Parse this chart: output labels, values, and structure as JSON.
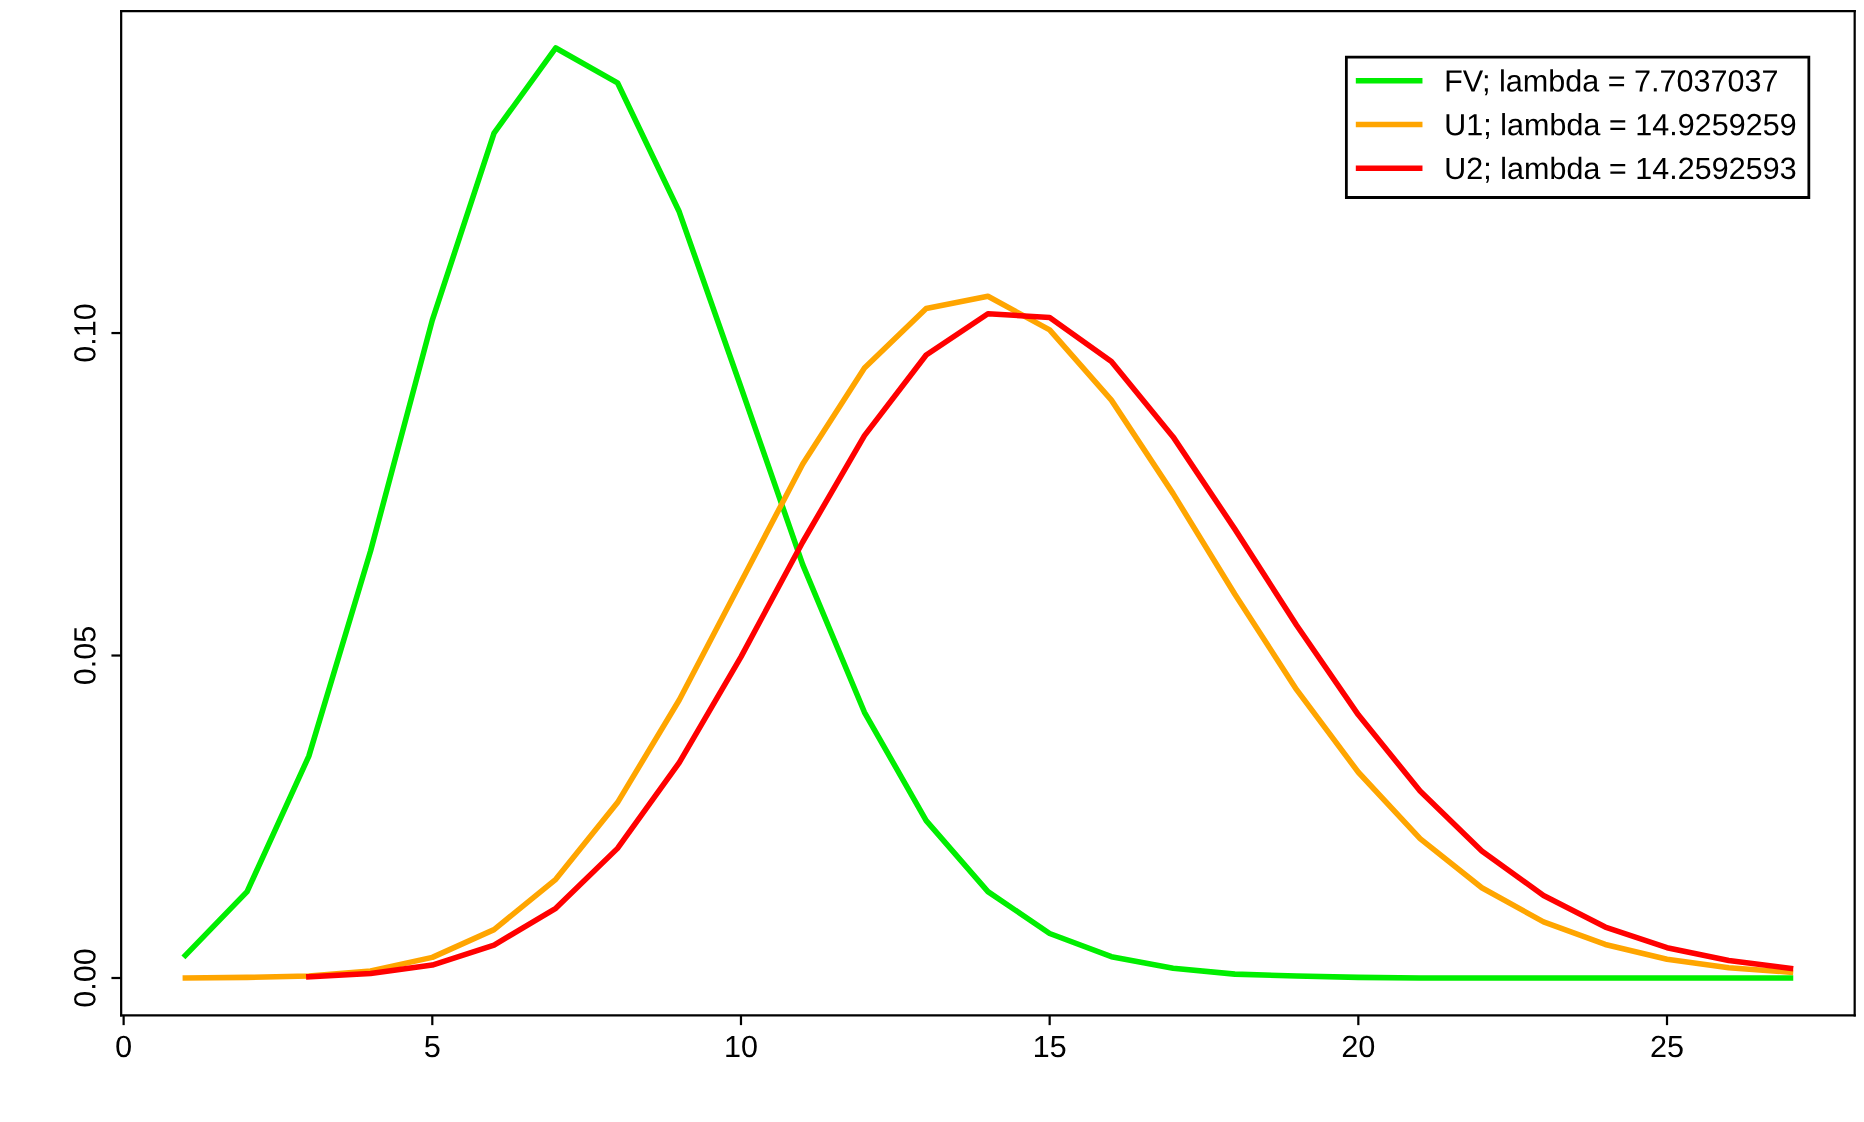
{
  "chart_data": {
    "type": "line",
    "xlim": [
      -0.04,
      28.04
    ],
    "ylim": [
      -0.0058,
      0.1499
    ],
    "xticks": [
      0,
      5,
      10,
      15,
      20,
      25
    ],
    "yticks": [
      {
        "value": 0,
        "label": "0.00"
      },
      {
        "value": 0.05,
        "label": "0.05"
      },
      {
        "value": 0.1,
        "label": "0.10"
      }
    ],
    "grid": false,
    "legend": "top right",
    "marker": "none",
    "line_style": "solid",
    "series": [
      {
        "name": "FV; lambda = 7.7037037",
        "color": "#00ee00",
        "x": [
          1,
          2,
          3,
          4,
          5,
          6,
          7,
          8,
          9,
          10,
          11,
          12,
          13,
          14,
          15,
          16,
          17,
          18,
          19,
          20,
          21,
          22,
          23,
          24,
          25,
          26,
          27
        ],
        "values": [
          0.0035,
          0.0134,
          0.0344,
          0.0662,
          0.102,
          0.131,
          0.1442,
          0.1388,
          0.1188,
          0.0916,
          0.0641,
          0.0412,
          0.0244,
          0.0134,
          0.0069,
          0.0033,
          0.0015,
          0.0006,
          0.0003,
          0.0001,
          0,
          0,
          0,
          0,
          0,
          0,
          0
        ]
      },
      {
        "name": "U1; lambda = 14.9259259",
        "color": "#ffa500",
        "x": [
          1,
          2,
          3,
          4,
          5,
          6,
          7,
          8,
          9,
          10,
          11,
          12,
          13,
          14,
          15,
          16,
          17,
          18,
          19,
          20,
          21,
          22,
          23,
          24,
          25,
          26,
          27
        ],
        "values": [
          0,
          0.0001,
          0.0003,
          0.0011,
          0.0032,
          0.0075,
          0.0153,
          0.0272,
          0.0431,
          0.0614,
          0.0797,
          0.0946,
          0.1038,
          0.1057,
          0.1005,
          0.0896,
          0.0751,
          0.0595,
          0.0447,
          0.0319,
          0.0216,
          0.014,
          0.0087,
          0.0052,
          0.0029,
          0.0016,
          0.0009
        ]
      },
      {
        "name": "U2; lambda = 14.2592593",
        "color": "#ff0000",
        "x": [
          3,
          4,
          5,
          6,
          7,
          8,
          9,
          10,
          11,
          12,
          13,
          14,
          15,
          16,
          17,
          18,
          19,
          20,
          21,
          22,
          23,
          24,
          25,
          26,
          27
        ],
        "values": [
          0.0002,
          0.0007,
          0.002,
          0.0051,
          0.0108,
          0.0201,
          0.0334,
          0.0498,
          0.0676,
          0.0841,
          0.0966,
          0.103,
          0.1024,
          0.0956,
          0.0839,
          0.0696,
          0.0547,
          0.0408,
          0.029,
          0.0197,
          0.0128,
          0.0079,
          0.0047,
          0.0027,
          0.0015
        ]
      }
    ]
  }
}
